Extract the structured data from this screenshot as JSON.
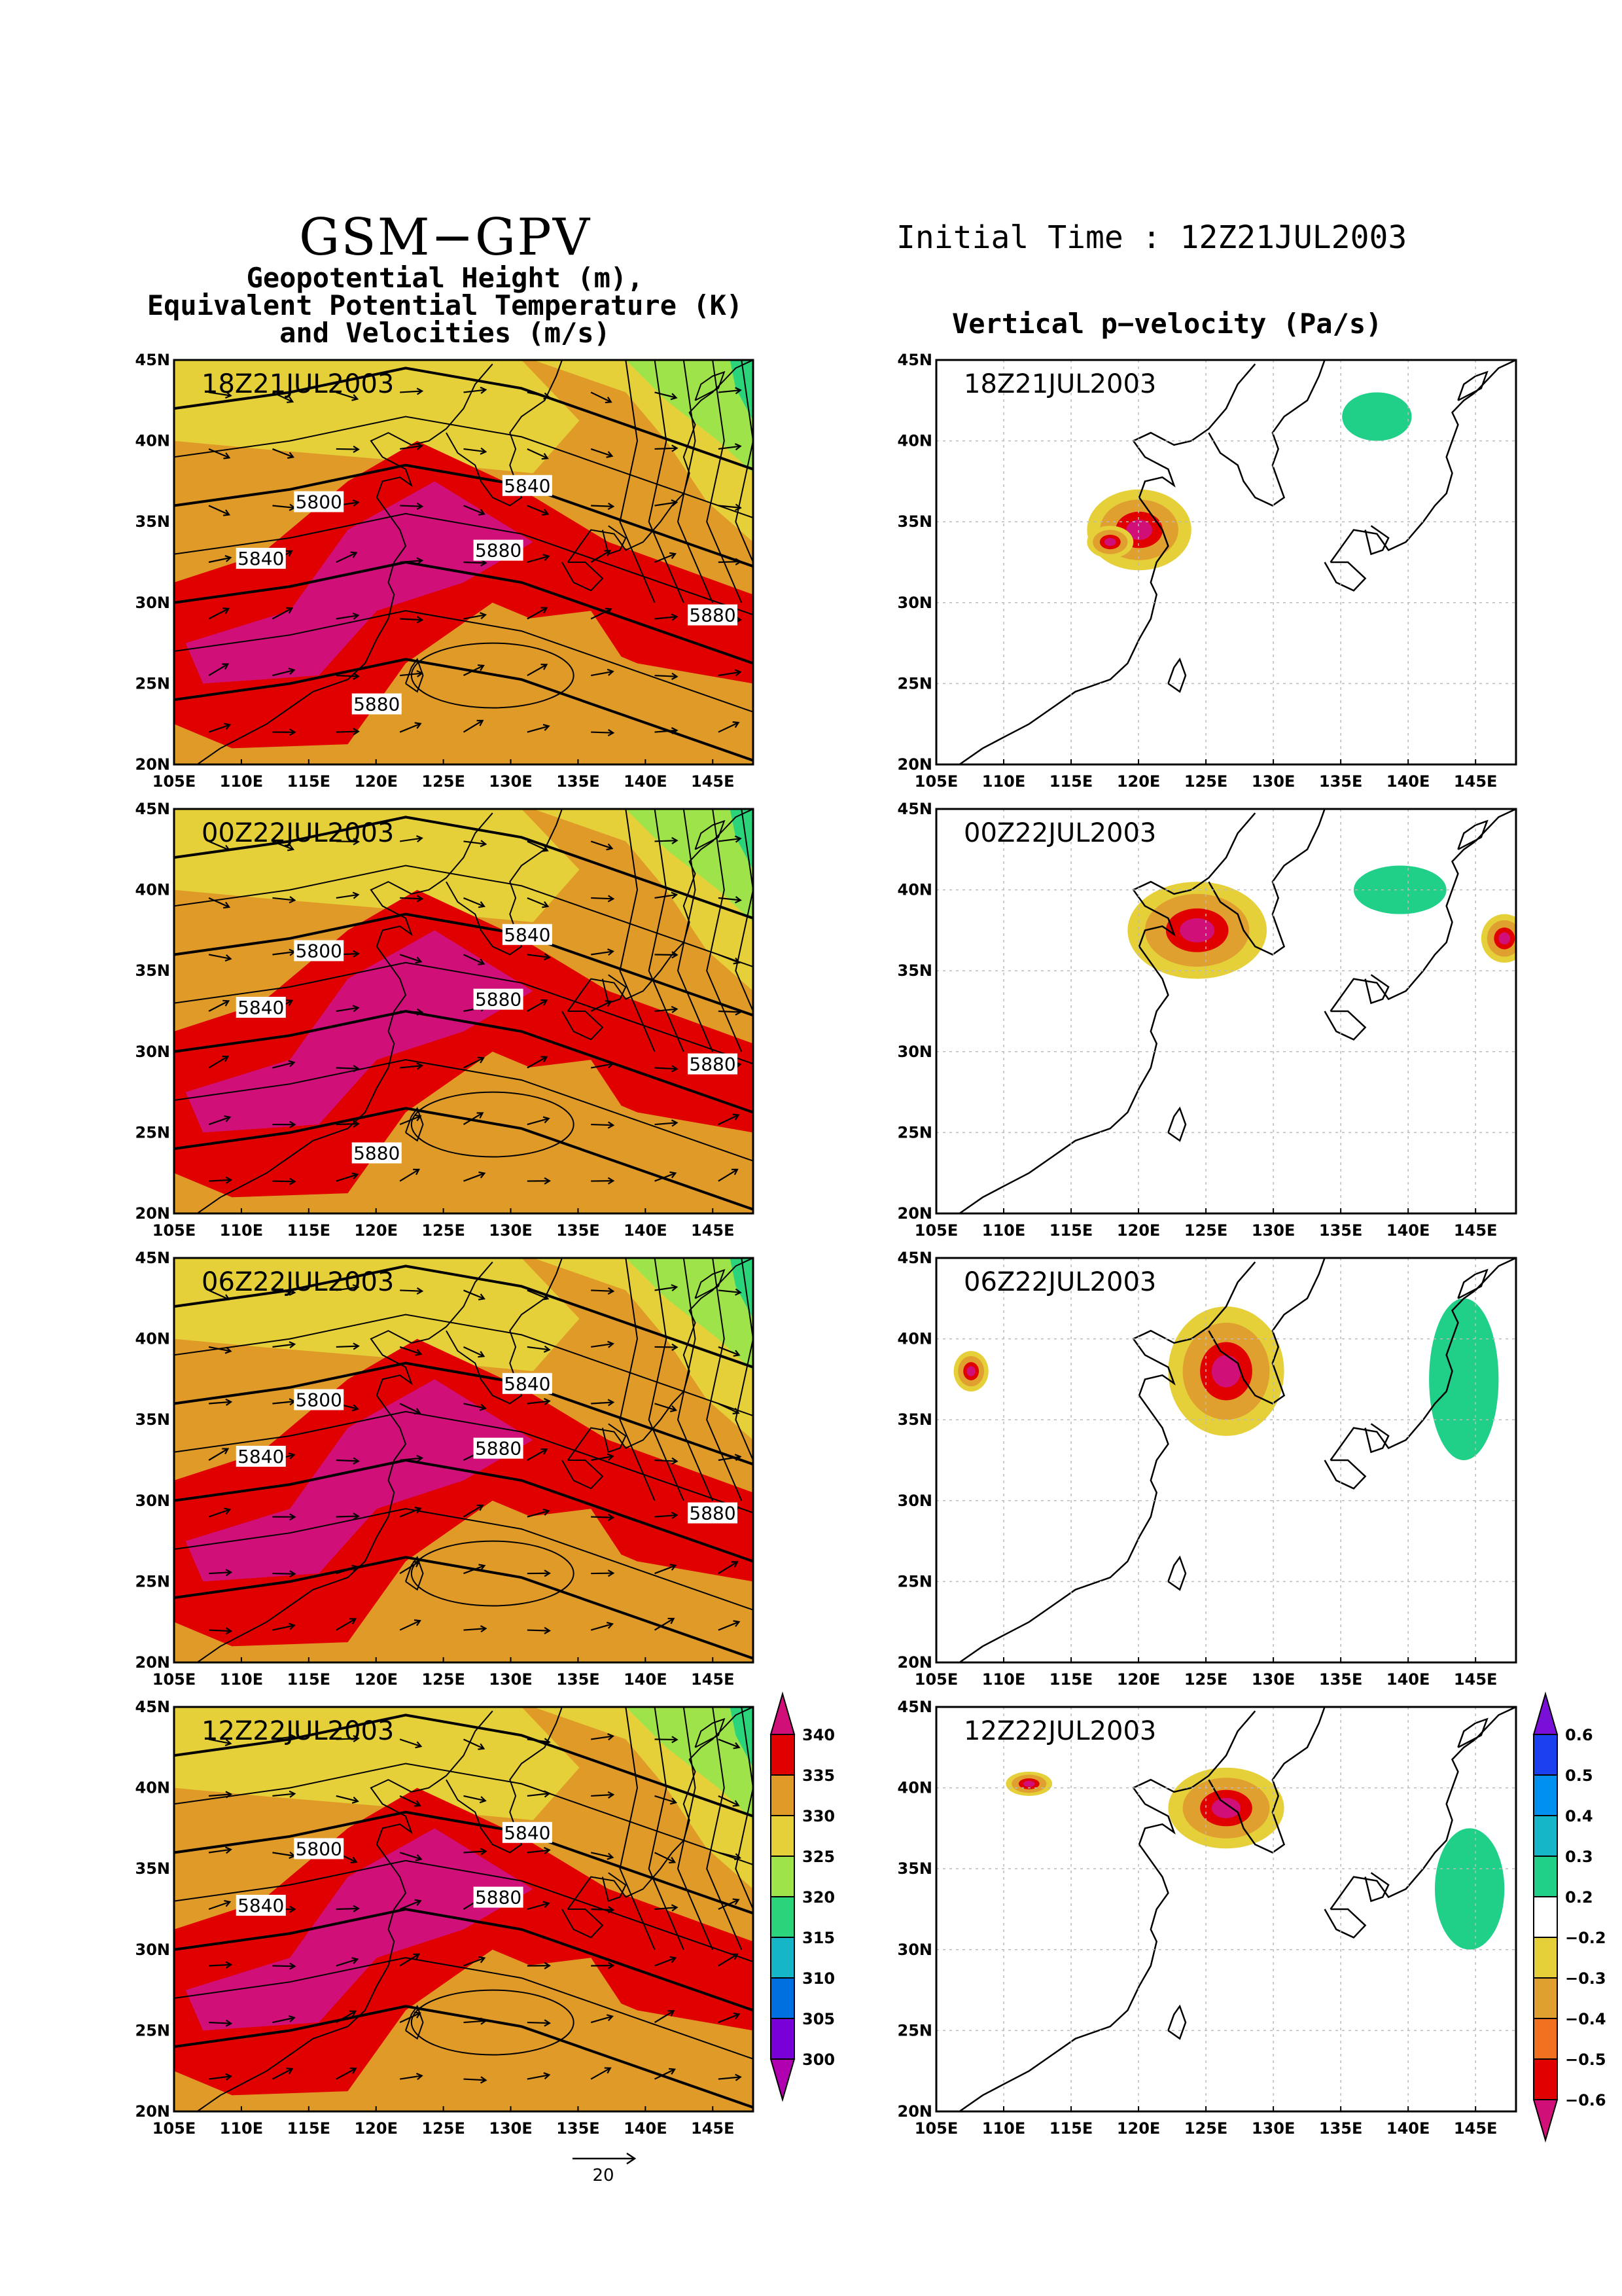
{
  "header": {
    "model": "GSM−GPV",
    "line1": "Geopotential Height (m),",
    "line2": "Equivalent Potential Temperature (K)",
    "line3": "and Velocities (m/s)",
    "initial_time": "Initial Time : 12Z21JUL2003",
    "right_title": "Vertical p−velocity (Pa/s)"
  },
  "lon_labels": [
    "105E",
    "110E",
    "115E",
    "120E",
    "125E",
    "130E",
    "135E",
    "140E",
    "145E"
  ],
  "lat_labels": [
    "20N",
    "25N",
    "30N",
    "35N",
    "40N",
    "45N"
  ],
  "panels": [
    {
      "time": "18Z21JUL2003",
      "height_labels": [
        "5800",
        "5840",
        "5840",
        "5880",
        "5880",
        "5880"
      ]
    },
    {
      "time": "00Z22JUL2003",
      "height_labels": [
        "5800",
        "5840",
        "5840",
        "5880",
        "5880",
        "5880"
      ]
    },
    {
      "time": "06Z22JUL2003",
      "height_labels": [
        "5800",
        "5840",
        "5840",
        "5880",
        "5880"
      ]
    },
    {
      "time": "12Z22JUL2003",
      "height_labels": [
        "5800",
        "5840",
        "5840",
        "5880"
      ]
    }
  ],
  "theta_e_colorbar": {
    "labels": [
      "340",
      "335",
      "330",
      "325",
      "320",
      "315",
      "310",
      "305",
      "300"
    ],
    "colors": [
      "#d01078",
      "#e00000",
      "#e09a28",
      "#e6d03a",
      "#9ee34a",
      "#2bd37a",
      "#14b6c7",
      "#0070e0",
      "#7a00d8",
      "#b000b0"
    ]
  },
  "omega_colorbar": {
    "labels": [
      "0.6",
      "0.5",
      "0.4",
      "0.3",
      "0.2",
      "−0.2",
      "−0.3",
      "−0.4",
      "−0.5",
      "−0.6"
    ],
    "colors": [
      "#7a10d8",
      "#1a40f0",
      "#0090f0",
      "#14b6c7",
      "#20d088",
      "#ffffff",
      "#e6d03a",
      "#e0a030",
      "#f07020",
      "#e00000",
      "#d01078"
    ]
  },
  "vector_scale": {
    "label": "20"
  },
  "colors": {
    "frame": "#000000",
    "grid": "#bbbbbb"
  }
}
